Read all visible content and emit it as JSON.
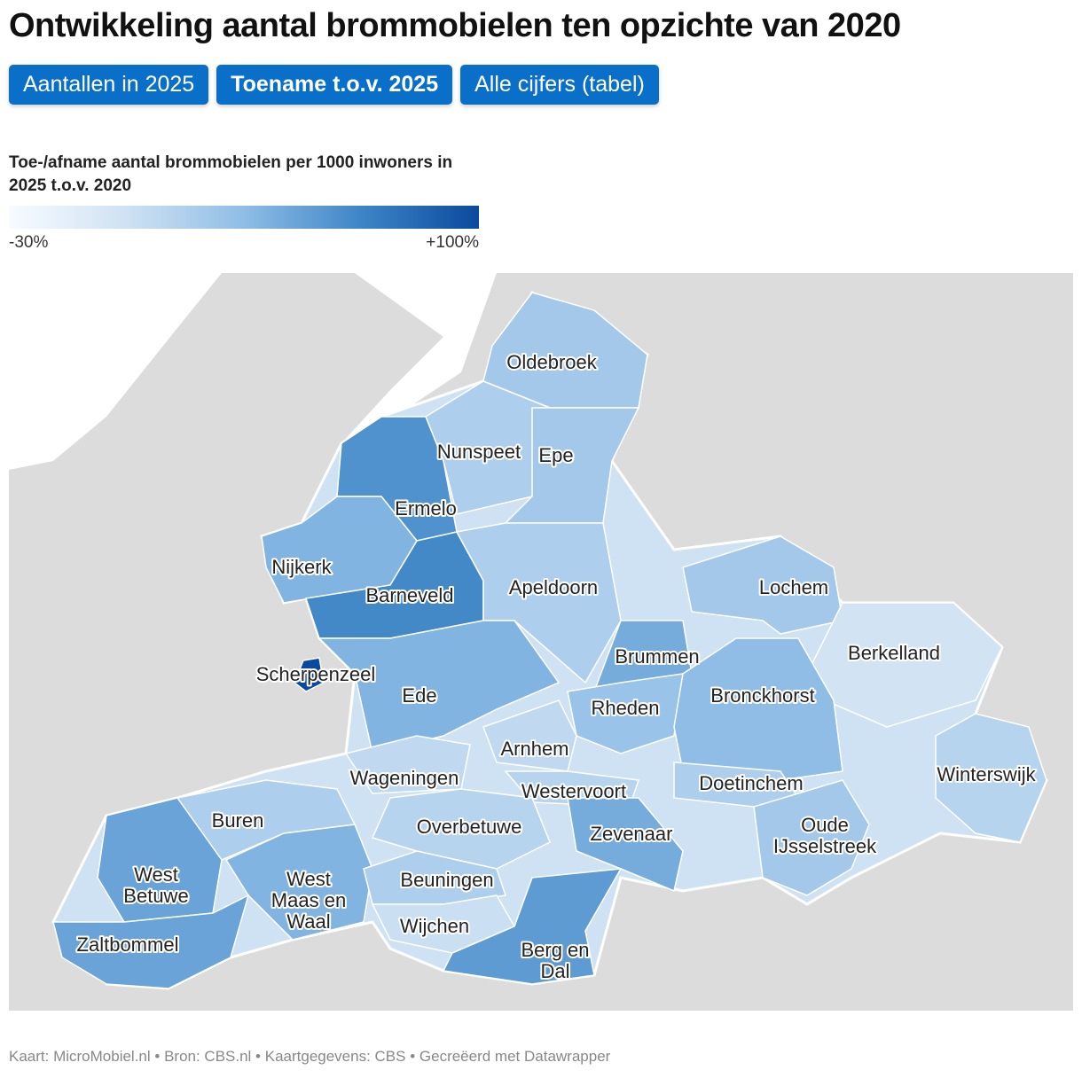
{
  "title": "Ontwikkeling aantal brommobielen ten opzichte van 2020",
  "tabs": [
    "Aantallen in 2025",
    "Toename t.o.v. 2025",
    "Alle cijfers (tabel)"
  ],
  "active_tab": 1,
  "legend": {
    "title": "Toe-/afname aantal brommobielen per 1000 inwoners in 2025 t.o.v. 2020",
    "min": {
      "value": -30,
      "label": "-30%"
    },
    "max": {
      "value": 100,
      "label": "+100%"
    },
    "colors": [
      "#f7fbff",
      "#cfe2f3",
      "#8fbde6",
      "#3d85c6",
      "#0a4a9e"
    ]
  },
  "regions": [
    {
      "label": [
        "Oldebroek"
      ],
      "value": 25
    },
    {
      "label": [
        "Nunspeet"
      ],
      "value": 20
    },
    {
      "label": [
        "Ermelo"
      ],
      "value": 60
    },
    {
      "label": [
        "Epe"
      ],
      "value": 25
    },
    {
      "label": [
        "Nijkerk"
      ],
      "value": 40
    },
    {
      "label": [
        "Barneveld"
      ],
      "value": 65
    },
    {
      "label": [
        "Apeldoorn"
      ],
      "value": 20
    },
    {
      "label": [
        "Scherpenzeel"
      ],
      "value": 100
    },
    {
      "label": [
        "Ede"
      ],
      "value": 40
    },
    {
      "label": [
        "Lochem"
      ],
      "value": 25
    },
    {
      "label": [
        "Brummen"
      ],
      "value": 45
    },
    {
      "label": [
        "Berkelland"
      ],
      "value": 0
    },
    {
      "label": [
        "Rheden"
      ],
      "value": 30
    },
    {
      "label": [
        "Bronckhorst"
      ],
      "value": 35
    },
    {
      "label": [
        "Arnhem"
      ],
      "value": 10
    },
    {
      "label": [
        "Wageningen"
      ],
      "value": 10
    },
    {
      "label": [
        "Westervoort"
      ],
      "value": 15
    },
    {
      "label": [
        "Doetinchem"
      ],
      "value": 20
    },
    {
      "label": [
        "Winterswijk"
      ],
      "value": 15
    },
    {
      "label": [
        "Buren"
      ],
      "value": 20
    },
    {
      "label": [
        "Overbetuwe"
      ],
      "value": 15
    },
    {
      "label": [
        "Zevenaar"
      ],
      "value": 45
    },
    {
      "label": [
        "Oude",
        "IJsselstreek"
      ],
      "value": 25
    },
    {
      "label": [
        "West",
        "Betuwe"
      ],
      "value": 50
    },
    {
      "label": [
        "West",
        "Maas en",
        "Waal"
      ],
      "value": 40
    },
    {
      "label": [
        "Beuningen"
      ],
      "value": 20
    },
    {
      "label": [
        "Zaltbommel"
      ],
      "value": 50
    },
    {
      "label": [
        "Wijchen"
      ],
      "value": 5
    },
    {
      "label": [
        "Berg en",
        "Dal"
      ],
      "value": 55
    }
  ],
  "footer": "Kaart: MicroMobiel.nl • Bron: CBS.nl • Kaartgegevens: CBS • Gecreëerd met Datawrapper"
}
